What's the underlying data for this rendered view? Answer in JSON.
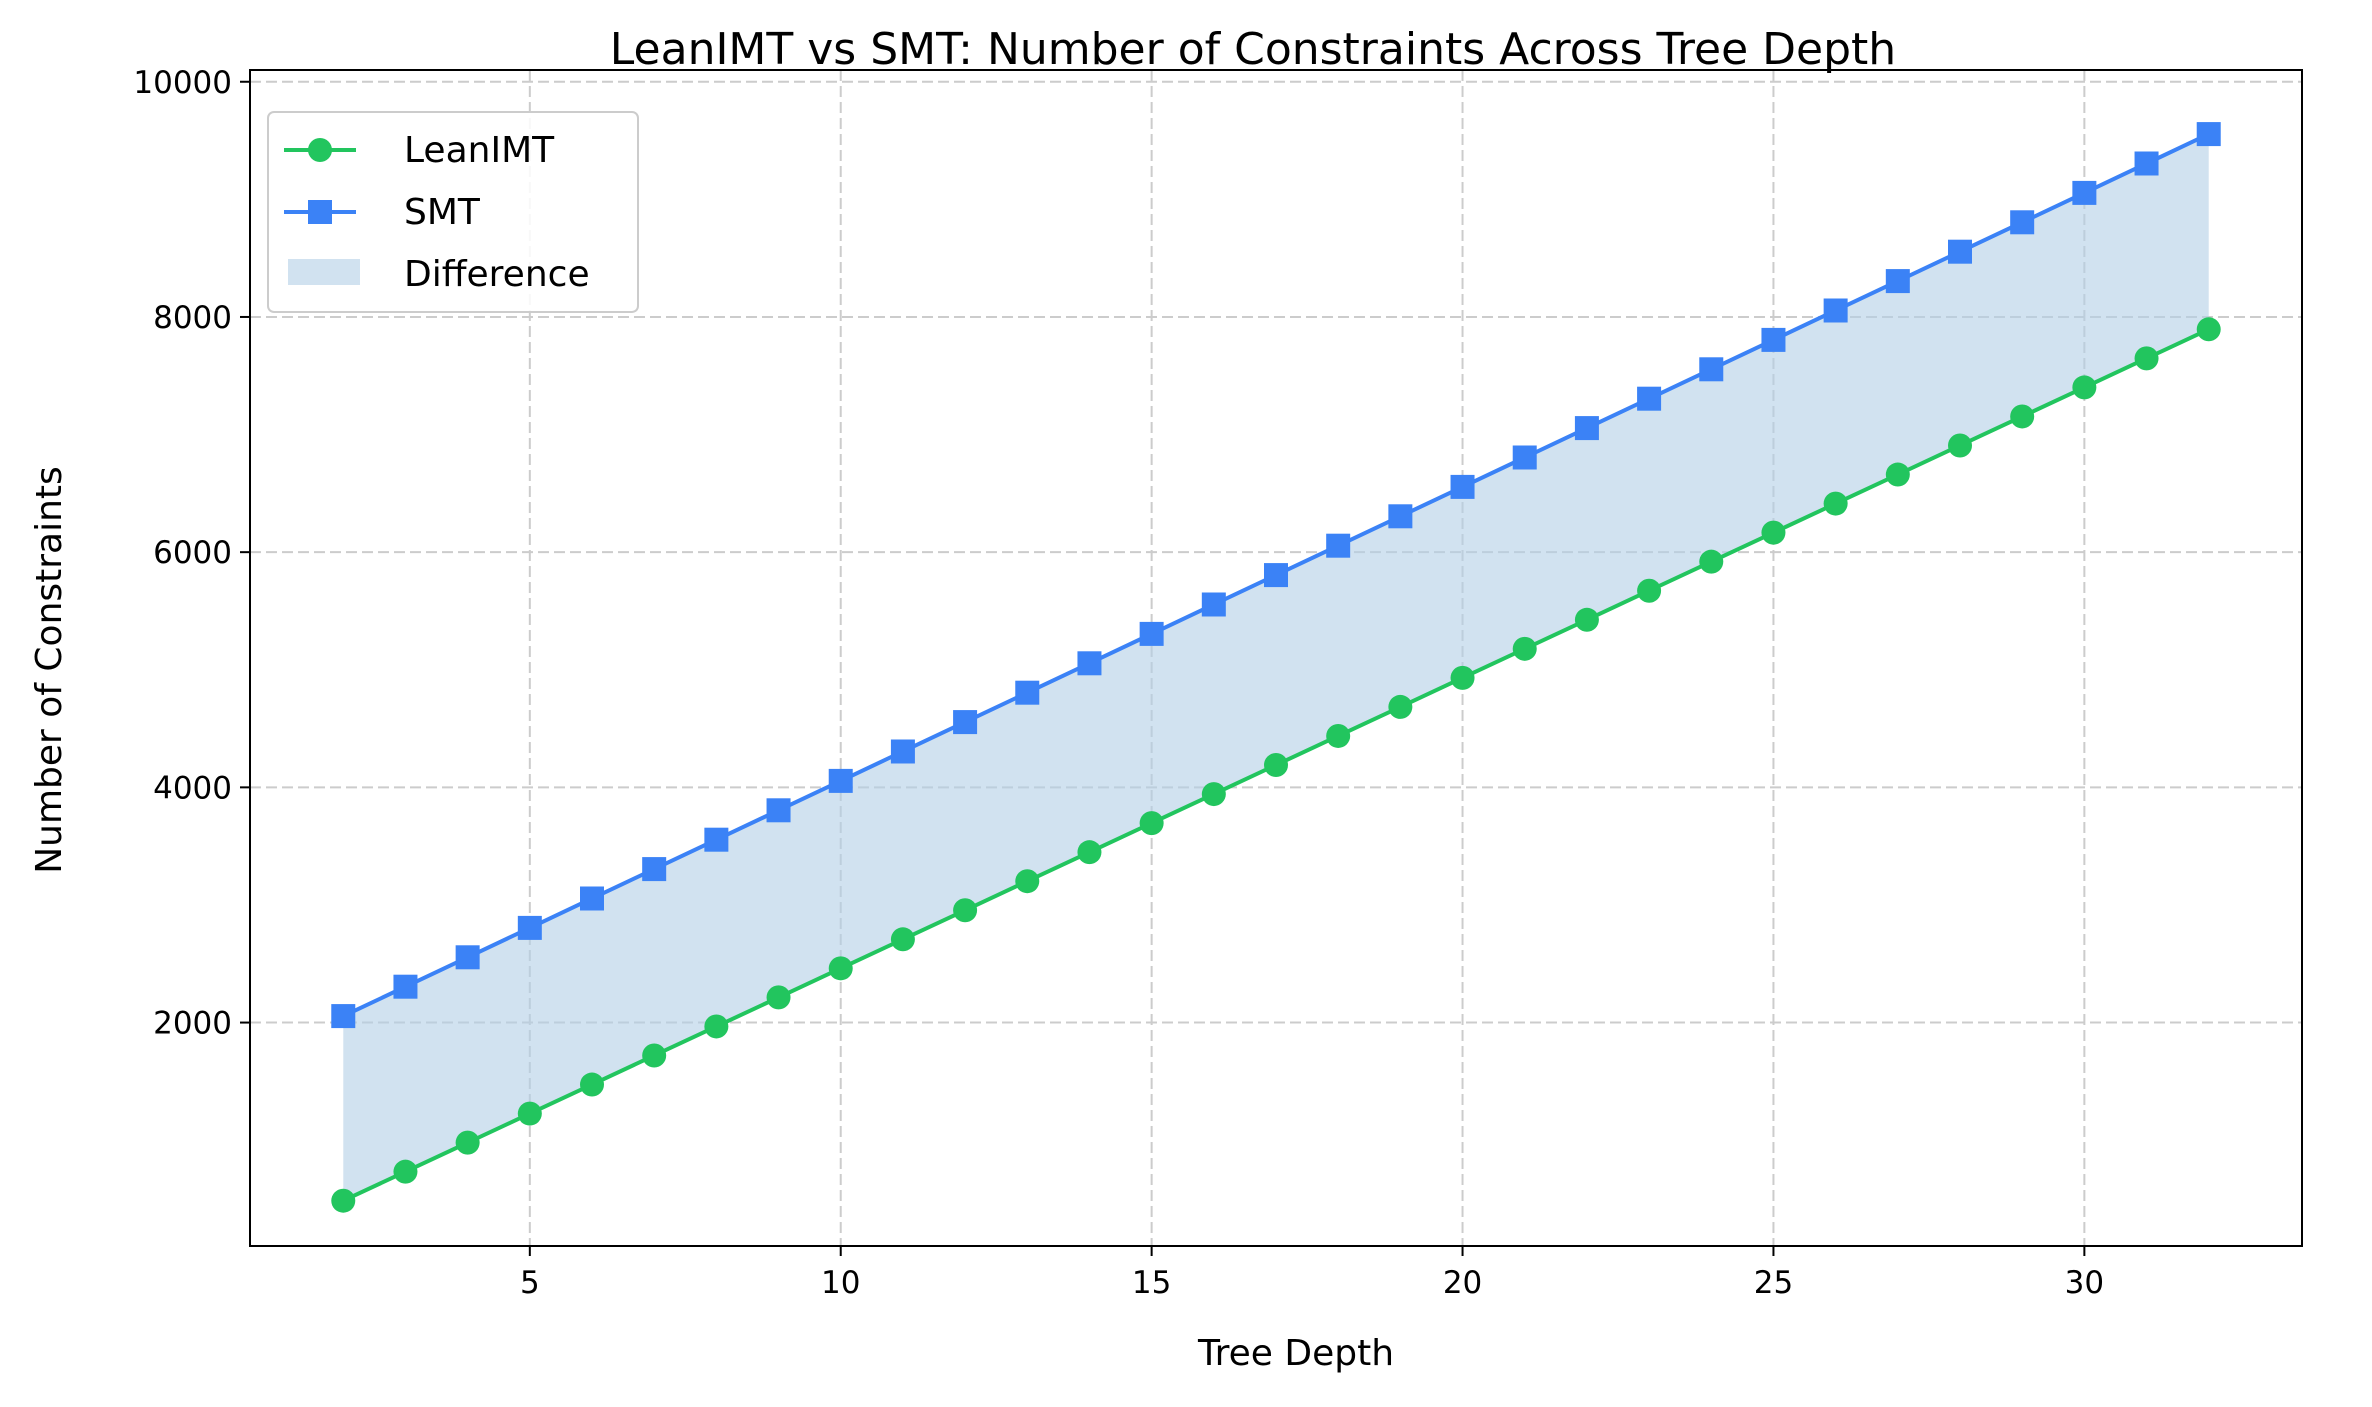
{
  "chart_data": {
    "type": "line",
    "title": "LeanIMT vs SMT: Number of Constraints Across Tree Depth",
    "xlabel": "Tree Depth",
    "ylabel": "Number of Constraints",
    "xlim": [
      0.5,
      33.5
    ],
    "ylim": [
      100,
      10100
    ],
    "xticks": [
      5,
      10,
      15,
      20,
      25,
      30
    ],
    "yticks": [
      2000,
      4000,
      6000,
      8000,
      10000
    ],
    "grid": true,
    "legend_position": "top-left",
    "x": [
      2,
      3,
      4,
      5,
      6,
      7,
      8,
      9,
      10,
      11,
      12,
      13,
      14,
      15,
      16,
      17,
      18,
      19,
      20,
      21,
      22,
      23,
      24,
      25,
      26,
      27,
      28,
      29,
      30,
      31,
      32
    ],
    "series": [
      {
        "name": "LeanIMT",
        "marker": "circle",
        "color": "#22c55e",
        "values": [
          485,
          732,
          979,
          1226,
          1473,
          1720,
          1967,
          2214,
          2461,
          2708,
          2955,
          3202,
          3449,
          3696,
          3943,
          4190,
          4437,
          4684,
          4931,
          5178,
          5425,
          5672,
          5919,
          6166,
          6413,
          6660,
          6907,
          7154,
          7401,
          7648,
          7895
        ]
      },
      {
        "name": "SMT",
        "marker": "square",
        "color": "#3b82f6",
        "values": [
          2055,
          2305,
          2555,
          2805,
          3055,
          3305,
          3555,
          3805,
          4055,
          4305,
          4555,
          4805,
          5055,
          5305,
          5555,
          5805,
          6055,
          6305,
          6555,
          6805,
          7055,
          7305,
          7555,
          7805,
          8055,
          8305,
          8555,
          8805,
          9055,
          9305,
          9555
        ]
      }
    ],
    "fill_between": {
      "name": "Difference",
      "color": "#b3cfe6"
    }
  }
}
